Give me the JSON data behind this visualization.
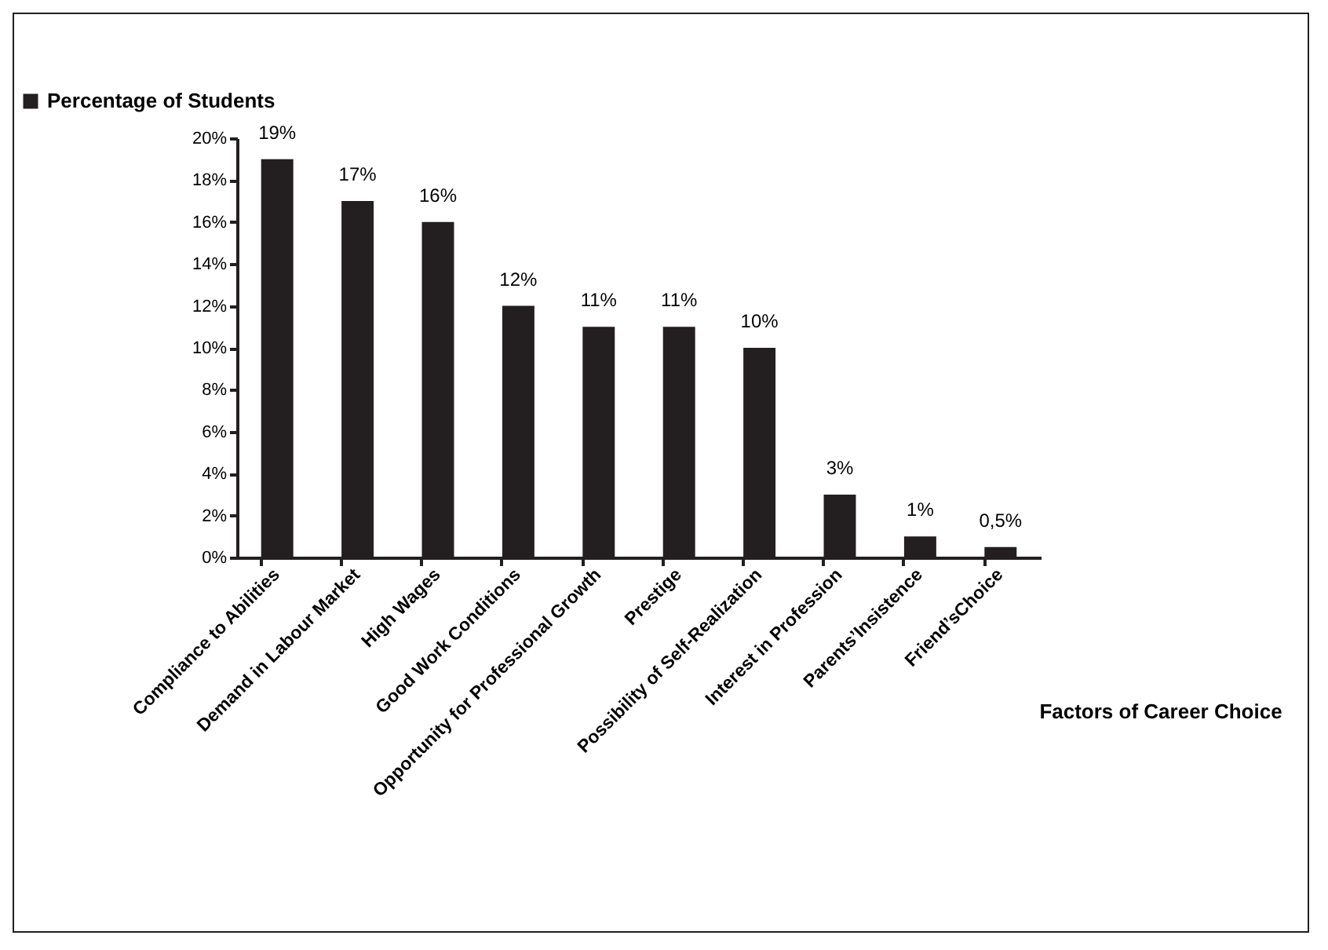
{
  "chart_data": {
    "type": "bar",
    "xlabel": "Factors of Career Choice",
    "categories": [
      "Compliance to Abilities",
      "Demand in Labour Market",
      "High Wages",
      "Good Work Conditions",
      "Opportunity for Professional Growth",
      "Prestige",
      "Possibility of Self-Realization",
      "Interest in Profession",
      "Parents’Insistence",
      "Friend’sChoice"
    ],
    "series": [
      {
        "name": "Percentage of Students",
        "color": "#231f20",
        "values": [
          19,
          17,
          16,
          12,
          11,
          11,
          10,
          3,
          1,
          0.5
        ]
      }
    ],
    "value_labels": [
      "19%",
      "17%",
      "16%",
      "12%",
      "11%",
      "11%",
      "10%",
      "3%",
      "1%",
      "0,5%"
    ],
    "ylim": [
      0,
      20
    ],
    "yticks": [
      {
        "value": 0,
        "label": "0%"
      },
      {
        "value": 2,
        "label": "2%"
      },
      {
        "value": 4,
        "label": "4%"
      },
      {
        "value": 6,
        "label": "6%"
      },
      {
        "value": 8,
        "label": "8%"
      },
      {
        "value": 10,
        "label": "10%"
      },
      {
        "value": 12,
        "label": "12%"
      },
      {
        "value": 14,
        "label": "14%"
      },
      {
        "value": 16,
        "label": "16%"
      },
      {
        "value": 18,
        "label": "18%"
      },
      {
        "value": 20,
        "label": "20%"
      }
    ],
    "legend": "top left",
    "grid": false
  }
}
